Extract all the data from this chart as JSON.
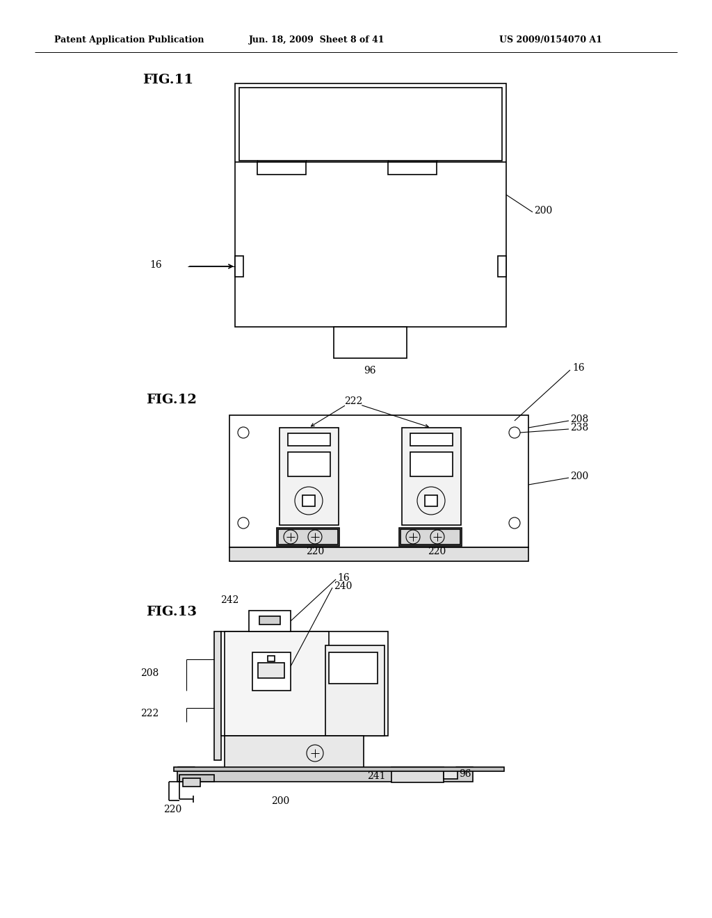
{
  "bg_color": "#ffffff",
  "line_color": "#000000",
  "header_left": "Patent Application Publication",
  "header_center": "Jun. 18, 2009  Sheet 8 of 41",
  "header_right": "US 2009/0154070 A1",
  "fig11_label": "FIG.11",
  "fig12_label": "FIG.12",
  "fig13_label": "FIG.13"
}
